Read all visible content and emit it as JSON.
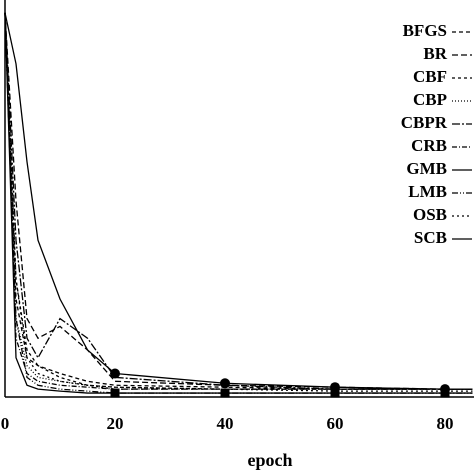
{
  "chart_data": {
    "type": "line",
    "xlabel": "epoch",
    "x": [
      0,
      2,
      4,
      6,
      10,
      15,
      20,
      40,
      60,
      80,
      85
    ],
    "xlim": [
      0,
      85
    ],
    "xticks": [
      0,
      20,
      40,
      60,
      80
    ],
    "ylim": [
      0,
      1
    ],
    "series": [
      {
        "name": "BFGS",
        "color": "#000000",
        "dash": "4 3",
        "values": [
          0.98,
          0.25,
          0.1,
          0.08,
          0.06,
          0.04,
          0.03,
          0.025,
          0.02,
          0.02,
          0.02
        ]
      },
      {
        "name": "BR",
        "color": "#000000",
        "dash": "6 3",
        "values": [
          0.98,
          0.5,
          0.2,
          0.15,
          0.18,
          0.12,
          0.04,
          0.03,
          0.025,
          0.02,
          0.02
        ]
      },
      {
        "name": "CBF",
        "color": "#000000",
        "dash": "3 3",
        "values": [
          0.98,
          0.3,
          0.12,
          0.08,
          0.05,
          0.03,
          0.025,
          0.02,
          0.02,
          0.02,
          0.02
        ]
      },
      {
        "name": "CBP",
        "color": "#000000",
        "dash": "1 2",
        "values": [
          0.98,
          0.2,
          0.08,
          0.05,
          0.04,
          0.03,
          0.025,
          0.02,
          0.02,
          0.02,
          0.02
        ]
      },
      {
        "name": "CBPR",
        "color": "#000000",
        "dash": "8 2 2 2",
        "values": [
          0.98,
          0.4,
          0.15,
          0.1,
          0.2,
          0.15,
          0.05,
          0.03,
          0.02,
          0.02,
          0.02
        ]
      },
      {
        "name": "CRB",
        "color": "#000000",
        "dash": "5 2 1 2",
        "values": [
          0.98,
          0.15,
          0.06,
          0.04,
          0.03,
          0.025,
          0.02,
          0.02,
          0.02,
          0.02,
          0.02
        ]
      },
      {
        "name": "GMB",
        "color": "#000000",
        "dash": "none",
        "marker": "circle",
        "values": [
          0.98,
          0.85,
          0.6,
          0.4,
          0.25,
          0.12,
          0.06,
          0.035,
          0.025,
          0.02,
          0.02
        ]
      },
      {
        "name": "LMB",
        "color": "#000000",
        "dash": "6 2 1 2 1 2",
        "values": [
          0.98,
          0.2,
          0.05,
          0.03,
          0.02,
          0.015,
          0.01,
          0.01,
          0.01,
          0.01,
          0.01
        ]
      },
      {
        "name": "OSB",
        "color": "#000000",
        "dash": "2 3",
        "values": [
          0.98,
          0.3,
          0.1,
          0.06,
          0.04,
          0.03,
          0.02,
          0.02,
          0.015,
          0.015,
          0.015
        ]
      },
      {
        "name": "SCB",
        "color": "#000000",
        "dash": "none",
        "marker": "square",
        "values": [
          0.98,
          0.1,
          0.03,
          0.02,
          0.015,
          0.01,
          0.01,
          0.01,
          0.01,
          0.01,
          0.01
        ]
      }
    ]
  }
}
